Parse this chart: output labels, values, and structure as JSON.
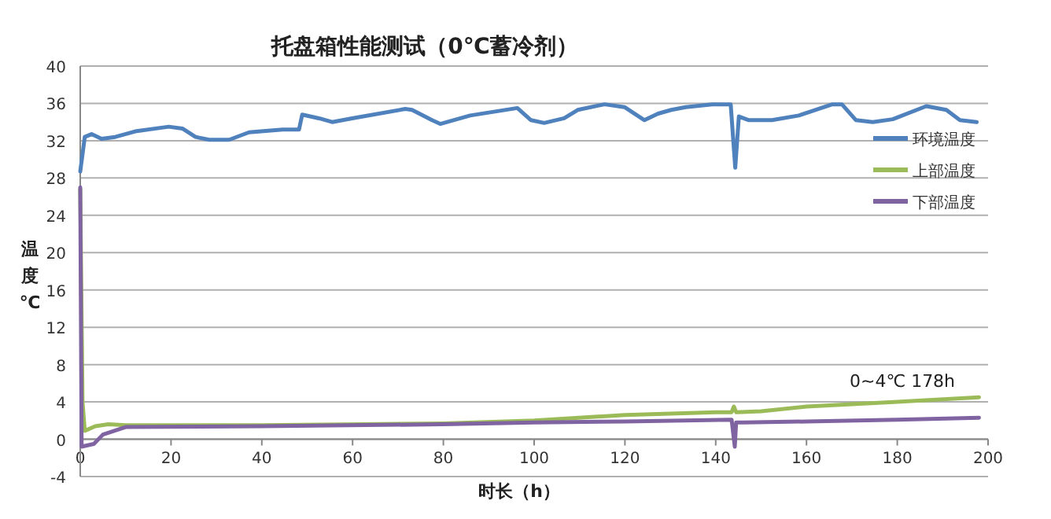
{
  "chart_data": {
    "type": "line",
    "title": "托盘箱性能测试（0℃蓄冷剂）",
    "xlabel": "时长（h）",
    "ylabel": "温度℃",
    "xlim": [
      0,
      200
    ],
    "xticks": [
      0,
      20,
      40,
      60,
      80,
      100,
      120,
      140,
      160,
      180,
      200
    ],
    "ylim": [
      -4,
      40
    ],
    "yticks": [
      -4,
      0,
      4,
      8,
      12,
      16,
      20,
      24,
      28,
      32,
      36,
      40
    ],
    "grid": "y",
    "legend": "right",
    "annotations": [
      "0~4℃ 178h"
    ],
    "series": [
      {
        "name": "环境温度",
        "color": "#4f81bd",
        "x": [
          0,
          1,
          2.5,
          4.7,
          7.7,
          12.1,
          19.5,
          22.5,
          25.4,
          28.4,
          32.8,
          37.2,
          44.6,
          48.2,
          48.9,
          52.6,
          55.5,
          59.9,
          71.6,
          73.1,
          77.5,
          79.3,
          85.9,
          96.3,
          99.3,
          102.2,
          106.6,
          109.6,
          115.5,
          119.9,
          124.3,
          127.3,
          130.2,
          133.4,
          139.2,
          143.3,
          144.3,
          145.1,
          147.3,
          152.4,
          158.3,
          165.7,
          167.8,
          170.9,
          174.6,
          179,
          186.4,
          190.8,
          193.8,
          197.5
        ],
        "values": [
          28.7,
          32.4,
          32.7,
          32.2,
          32.4,
          33,
          33.5,
          33.3,
          32.4,
          32.1,
          32.1,
          32.9,
          33.2,
          33.2,
          34.8,
          34.4,
          34,
          34.4,
          35.4,
          35.3,
          34.2,
          33.8,
          34.7,
          35.5,
          34.2,
          33.9,
          34.4,
          35.3,
          35.9,
          35.6,
          34.2,
          34.9,
          35.3,
          35.6,
          35.9,
          35.9,
          29.1,
          34.6,
          34.2,
          34.2,
          34.7,
          35.9,
          35.9,
          34.2,
          34,
          34.3,
          35.7,
          35.3,
          34.2,
          34
        ]
      },
      {
        "name": "上部温度",
        "color": "#9bbb59",
        "x": [
          0,
          0.5,
          1,
          3.3,
          6.2,
          10,
          40,
          80,
          100,
          120,
          140,
          143.5,
          144,
          144.5,
          150,
          160,
          180,
          198
        ],
        "values": [
          26.8,
          4,
          0.9,
          1.4,
          1.6,
          1.5,
          1.5,
          1.7,
          2,
          2.6,
          2.9,
          2.9,
          3.5,
          2.9,
          3,
          3.5,
          4,
          4.5
        ]
      },
      {
        "name": "下部温度",
        "color": "#8064a2",
        "x": [
          0,
          0.3,
          3,
          5,
          10,
          40,
          80,
          100,
          120,
          143.5,
          144.2,
          144.5,
          146,
          160,
          180,
          198
        ],
        "values": [
          27,
          -0.8,
          -0.5,
          0.5,
          1.3,
          1.4,
          1.6,
          1.8,
          1.9,
          2.1,
          -0.8,
          1.8,
          1.8,
          1.9,
          2.1,
          2.3
        ]
      }
    ]
  }
}
